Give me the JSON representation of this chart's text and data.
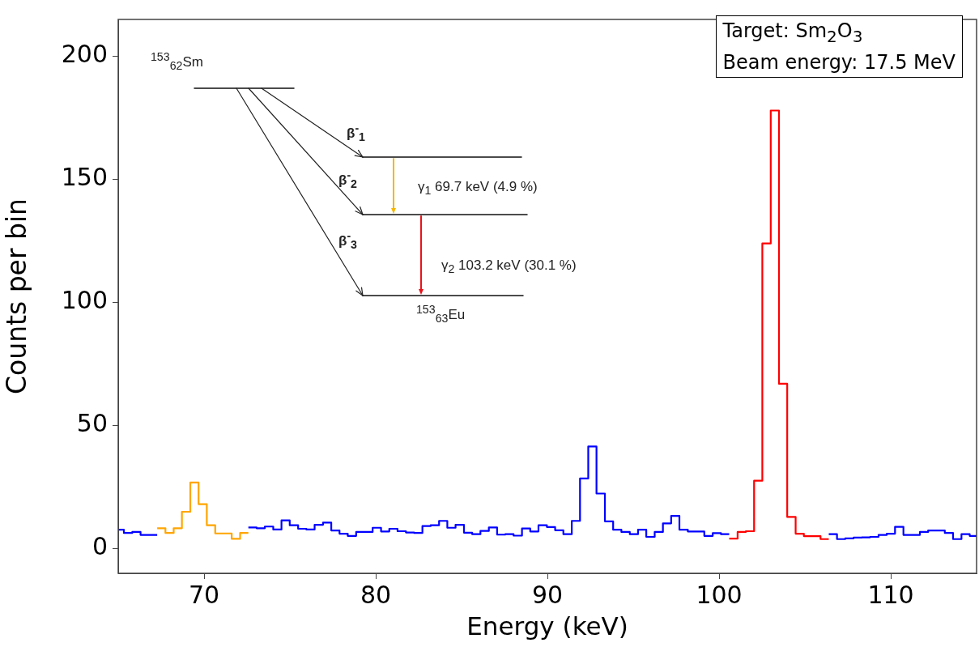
{
  "chart_data": {
    "type": "step",
    "xlabel": "Energy (keV)",
    "ylabel": "Counts per bin",
    "xlim": [
      65,
      115
    ],
    "xticks": [
      70,
      80,
      90,
      100,
      110
    ],
    "ylim": [
      -10,
      215
    ],
    "yticks": [
      0,
      50,
      100,
      150,
      200
    ],
    "grid": false,
    "series": [
      {
        "color": "#0000ff",
        "x": [
          65,
          65.33,
          65.82,
          66.3,
          66.78,
          67.27
        ],
        "values": [
          7.7,
          6.4,
          6.8,
          5.6,
          5.6,
          5.6
        ]
      },
      {
        "color": "#ffa500",
        "x": [
          67.27,
          67.75,
          68.23,
          68.71,
          69.2,
          69.68,
          70.16,
          70.65,
          71.13,
          71.61,
          72.1,
          72.58
        ],
        "values": [
          8.3,
          6.4,
          8.3,
          15,
          26.9,
          18.1,
          9.5,
          6.2,
          6.2,
          4,
          6.4,
          6.4
        ]
      },
      {
        "color": "#0000ff",
        "x": [
          72.58,
          73.06,
          73.54,
          74.03,
          74.51,
          74.99,
          75.48,
          75.96,
          76.44,
          76.93,
          77.41,
          77.89,
          78.37,
          78.86,
          79.34,
          79.82,
          80.31,
          80.79,
          81.27,
          81.76,
          82.24,
          82.72,
          83.2,
          83.69,
          84.17,
          84.65,
          85.14,
          85.62,
          86.1,
          86.59,
          87.07,
          87.55,
          88.03,
          88.52,
          89.0,
          89.48,
          89.97,
          90.45,
          90.93,
          91.42,
          91.9,
          92.38,
          92.86,
          93.35,
          93.83,
          94.31,
          94.8,
          95.28,
          95.76,
          96.25,
          96.73,
          97.21,
          97.69,
          98.18,
          98.66,
          99.14,
          99.63,
          100.11,
          100.59
        ],
        "values": [
          8.6,
          8.3,
          9,
          7.8,
          11.5,
          9.5,
          8.1,
          7.8,
          9.7,
          10.6,
          7.4,
          6.1,
          5.2,
          6.8,
          6.8,
          8.5,
          7,
          8.1,
          7.1,
          6.6,
          6.4,
          9.2,
          9.5,
          11.3,
          8.5,
          9.7,
          6.5,
          5.9,
          7.2,
          8.6,
          5.7,
          5.9,
          5.3,
          8.2,
          7,
          9.5,
          8.8,
          7.5,
          5.9,
          11.3,
          28.5,
          41.5,
          22.4,
          11.1,
          7.7,
          6.8,
          5.9,
          7.7,
          4.8,
          6.8,
          10.3,
          13.3,
          7.7,
          7,
          7,
          5.2,
          6.3,
          5.9,
          5.9
        ]
      },
      {
        "color": "#ff0000",
        "x": [
          100.59,
          101.08,
          101.56,
          102.04,
          102.52,
          103.01,
          103.49,
          103.97,
          104.46,
          104.94,
          105.42,
          105.91,
          106.39
        ],
        "values": [
          4.1,
          6.8,
          7.1,
          27.6,
          124,
          178,
          67,
          12.9,
          6.1,
          5.1,
          5.1,
          3.9,
          3.9
        ]
      },
      {
        "color": "#0000ff",
        "x": [
          106.39,
          106.87,
          107.35,
          107.84,
          108.32,
          108.8,
          109.29,
          109.77,
          110.25,
          110.74,
          111.22,
          111.7,
          112.18,
          112.67,
          113.15,
          113.63,
          114.12,
          114.6,
          115
        ],
        "values": [
          5.9,
          3.9,
          4.2,
          4.5,
          4.6,
          4.8,
          5.6,
          6.1,
          8.9,
          5.6,
          5.6,
          6.8,
          7.4,
          7.4,
          6.4,
          3.9,
          5.9,
          5.2,
          5.2
        ]
      }
    ],
    "annotations": [
      "Target: Sm$_{2}$O$_{3}$",
      "Beam energy: 17.5 MeV",
      "$^{153}$$_{62}$Sm",
      "β$^{-}$$_{1}$",
      "β$^{-}$$_{2}$",
      "β$^{-}$$_{3}$",
      "γ$_{1}$ 69.7 keV (4.9 %)",
      "γ$_{2}$ 103.2 keV (30.1 %)",
      "$^{153}$$_{63}$Eu"
    ]
  }
}
